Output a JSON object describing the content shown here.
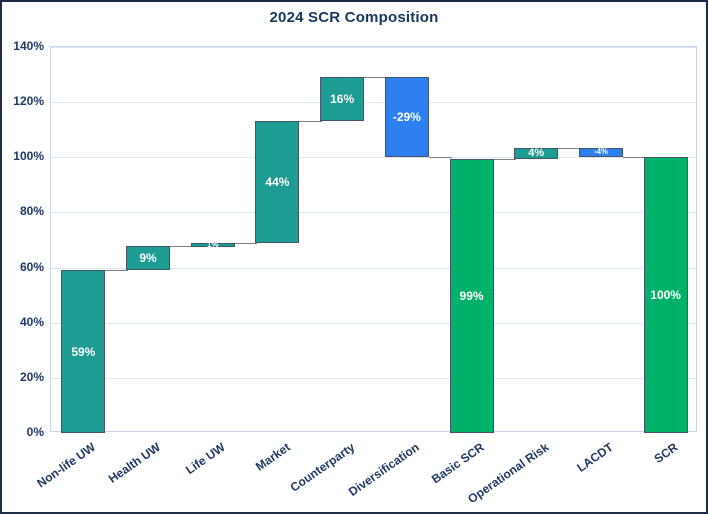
{
  "chart_data": {
    "type": "waterfall",
    "title": "2024 SCR Composition",
    "xlabel": "",
    "ylabel": "",
    "ylim": [
      0,
      140
    ],
    "ytick_step": 20,
    "ytick_suffix": "%",
    "grid": true,
    "legend": false,
    "categories": [
      "Non-life UW",
      "Health UW",
      "Life UW",
      "Market",
      "Counterparty",
      "Diversification",
      "Basic SCR",
      "Operational Risk",
      "LACDT",
      "SCR"
    ],
    "bars": [
      {
        "label": "Non-life UW",
        "value": 59,
        "display": "59%",
        "kind": "increase",
        "from": 0,
        "to": 59
      },
      {
        "label": "Health UW",
        "value": 9,
        "display": "9%",
        "kind": "increase",
        "from": 59,
        "to": 68
      },
      {
        "label": "Life UW",
        "value": 1,
        "display": "1%",
        "kind": "increase",
        "from": 68,
        "to": 69
      },
      {
        "label": "Market",
        "value": 44,
        "display": "44%",
        "kind": "increase",
        "from": 69,
        "to": 113
      },
      {
        "label": "Counterparty",
        "value": 16,
        "display": "16%",
        "kind": "increase",
        "from": 113,
        "to": 129
      },
      {
        "label": "Diversification",
        "value": -29,
        "display": "-29%",
        "kind": "decrease",
        "from": 129,
        "to": 100
      },
      {
        "label": "Basic SCR",
        "value": 99,
        "display": "99%",
        "kind": "total",
        "from": 0,
        "to": 99.5
      },
      {
        "label": "Operational Risk",
        "value": 4,
        "display": "4%",
        "kind": "increase",
        "from": 99.5,
        "to": 103.5
      },
      {
        "label": "LACDT",
        "value": -4,
        "display": "-4%",
        "kind": "decrease",
        "from": 103.5,
        "to": 100
      },
      {
        "label": "SCR",
        "value": 100,
        "display": "100%",
        "kind": "total",
        "from": 0,
        "to": 100
      }
    ],
    "colors": {
      "increase": "#1d9c94",
      "decrease": "#2e80f0",
      "total": "#00b169",
      "bar_outline": "#44546a",
      "connector": "#808080",
      "grid": "#dee8f5",
      "plot_border": "#c9d7ec",
      "axis_text": "#1f3864",
      "title_text": "#17375d",
      "bar_label": "#ffffff"
    }
  }
}
